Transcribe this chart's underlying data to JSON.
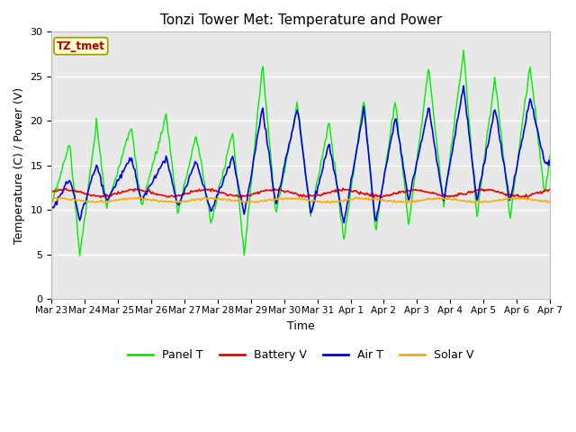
{
  "title": "Tonzi Tower Met: Temperature and Power",
  "xlabel": "Time",
  "ylabel": "Temperature (C) / Power (V)",
  "annotation": "TZ_tmet",
  "ylim": [
    0,
    30
  ],
  "yticks": [
    0,
    5,
    10,
    15,
    20,
    25,
    30
  ],
  "x_labels": [
    "Mar 23",
    "Mar 24",
    "Mar 25",
    "Mar 26",
    "Mar 27",
    "Mar 28",
    "Mar 29",
    "Mar 30",
    "Mar 31",
    "Apr 1",
    "Apr 2",
    "Apr 3",
    "Apr 4",
    "Apr 5",
    "Apr 6",
    "Apr 7"
  ],
  "fig_bg": "#ffffff",
  "plot_bg": "#e8e8e8",
  "grid_color": "#ffffff",
  "line_colors": {
    "panel_t": "#00ee00",
    "battery_v": "#ee0000",
    "air_t": "#0000ee",
    "solar_v": "#ffaa00"
  },
  "legend_labels": [
    "Panel T",
    "Battery V",
    "Air T",
    "Solar V"
  ],
  "panel_peaks": [
    0.55,
    1.35,
    2.4,
    3.45,
    4.35,
    5.45,
    6.35,
    7.4,
    8.35,
    9.4,
    10.35,
    11.35,
    12.4,
    13.35,
    14.4,
    15.0
  ],
  "panel_peak_vals": [
    17.5,
    20.0,
    19.5,
    20.5,
    18.5,
    18.8,
    26.3,
    22.0,
    20.0,
    22.5,
    22.3,
    26.0,
    27.8,
    25.0,
    26.3,
    16.0
  ],
  "panel_valleys": [
    0.0,
    0.85,
    1.65,
    2.7,
    3.8,
    4.8,
    5.8,
    6.75,
    7.8,
    8.8,
    9.75,
    10.75,
    11.8,
    12.8,
    13.8,
    14.85
  ],
  "panel_valley_vals": [
    10.5,
    4.7,
    10.3,
    10.3,
    9.5,
    8.5,
    5.0,
    9.5,
    9.5,
    6.5,
    7.5,
    8.3,
    10.5,
    9.2,
    9.0,
    11.5
  ],
  "air_peaks": [
    0.55,
    1.35,
    2.4,
    3.45,
    4.35,
    5.45,
    6.35,
    7.4,
    8.35,
    9.4,
    10.35,
    11.35,
    12.4,
    13.35,
    14.4
  ],
  "air_peak_vals": [
    13.5,
    15.2,
    16.0,
    16.0,
    15.5,
    16.0,
    21.5,
    21.5,
    17.5,
    21.5,
    20.5,
    21.5,
    24.0,
    21.5,
    22.5
  ],
  "air_valleys": [
    0.0,
    0.85,
    1.65,
    2.7,
    3.8,
    4.8,
    5.8,
    6.75,
    7.8,
    8.8,
    9.75,
    10.75,
    11.8,
    12.8,
    13.8,
    14.85
  ],
  "air_valley_vals": [
    10.0,
    9.0,
    11.0,
    11.0,
    10.5,
    9.8,
    9.5,
    10.5,
    9.5,
    8.5,
    8.5,
    11.0,
    11.0,
    11.0,
    10.8,
    15.2
  ],
  "battery_base": 11.9,
  "solar_base": 11.1,
  "n_points": 480,
  "figsize": [
    6.4,
    4.8
  ],
  "dpi": 100
}
